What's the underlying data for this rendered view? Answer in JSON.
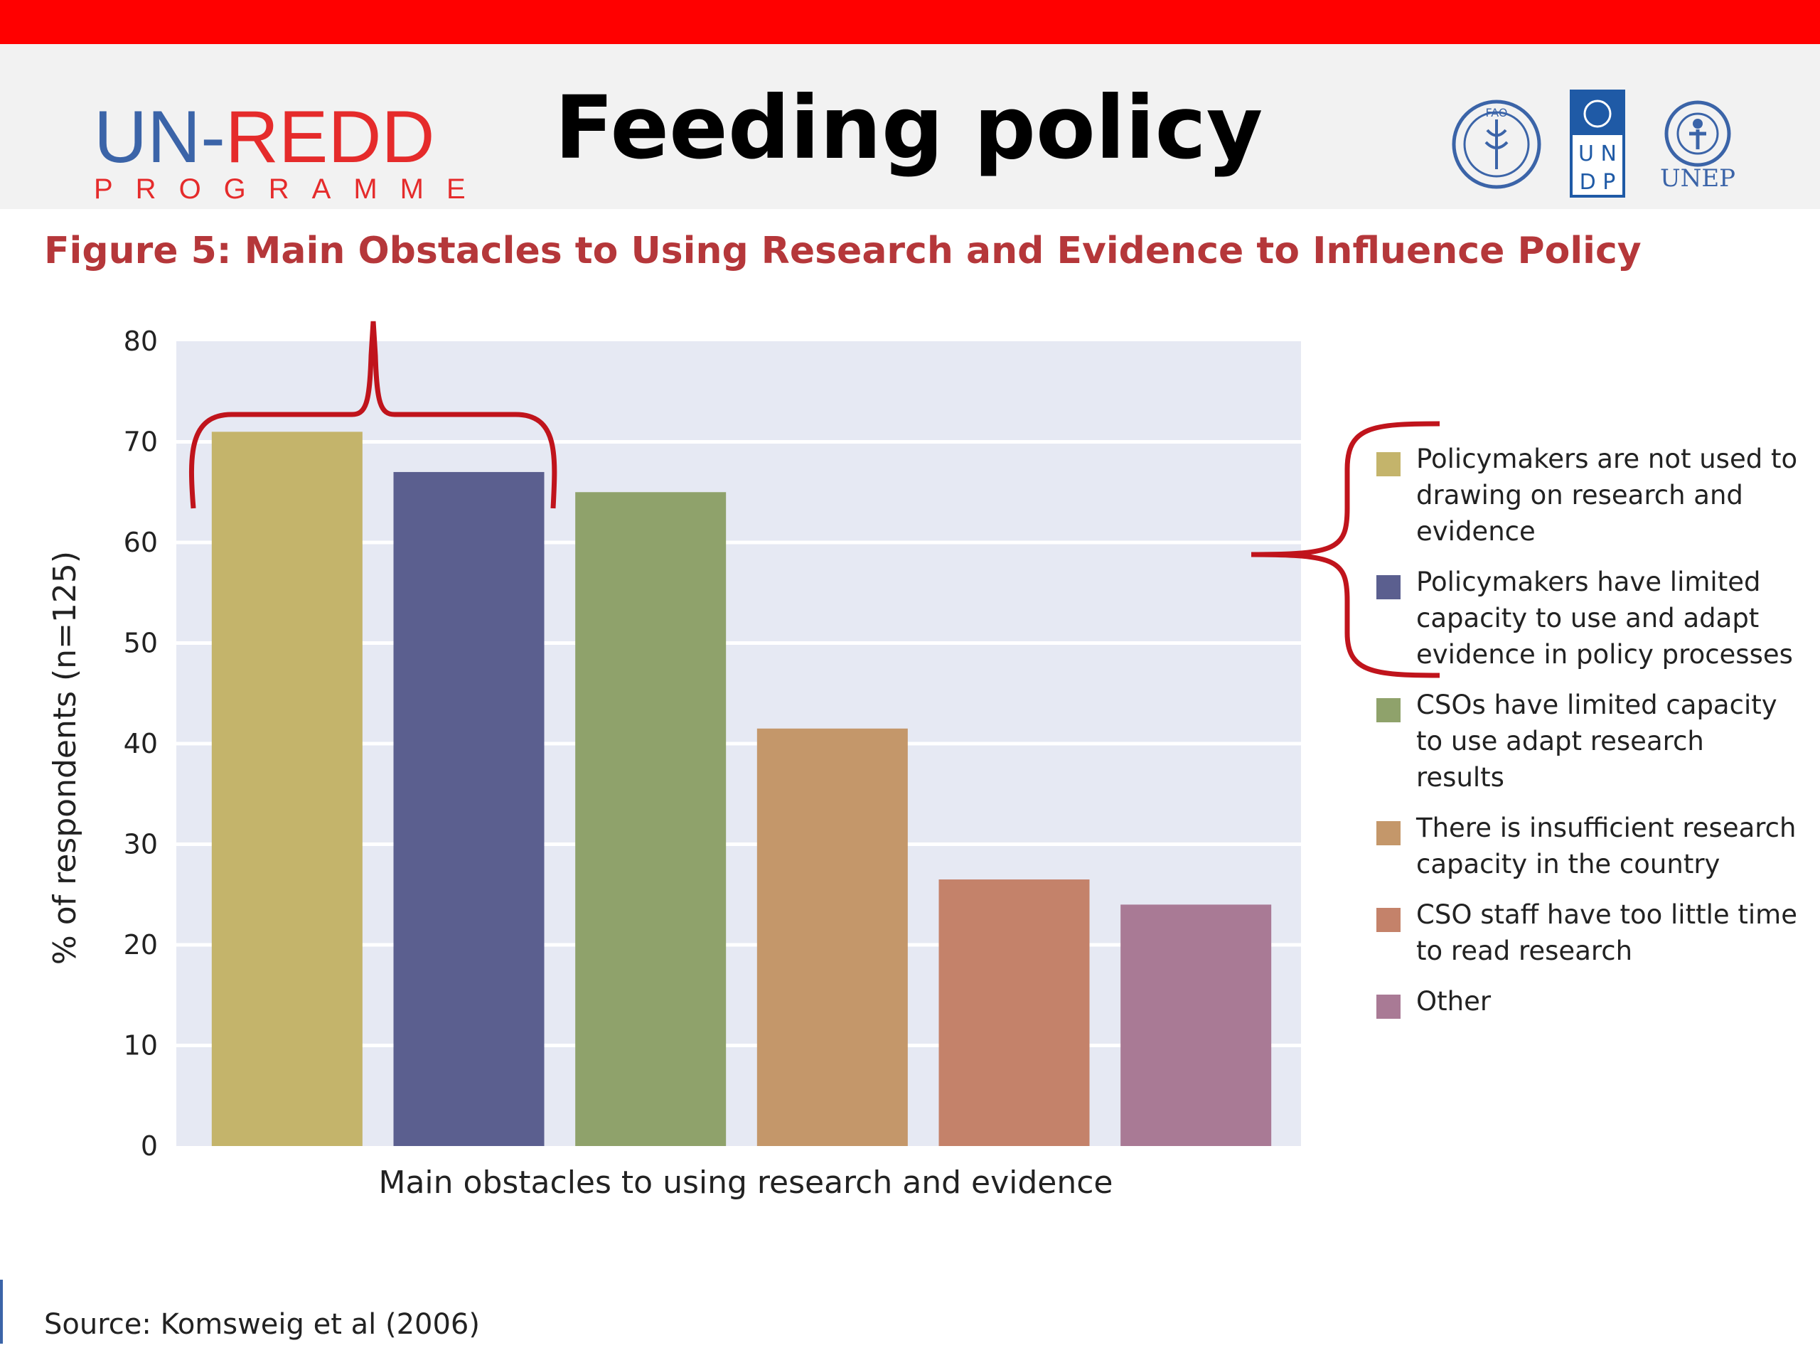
{
  "header": {
    "brand_main_un": "UN-",
    "brand_main_redd": "REDD",
    "brand_sub": "PROGRAMME",
    "title": "Feeding policy",
    "logos": [
      {
        "name": "fao-logo-icon",
        "text": "FAO"
      },
      {
        "name": "undp-logo-icon",
        "text_line1": "U N",
        "text_line2": "D P"
      },
      {
        "name": "unep-logo-icon",
        "text": "UNEP"
      }
    ]
  },
  "colors": {
    "accent_red": "#ff0000",
    "annotation_red": "#c0141c",
    "figure_title": "#b5373a",
    "plot_bg": "#e6e9f3"
  },
  "chart_data": {
    "type": "bar",
    "title": "Figure 5: Main Obstacles to Using Research and Evidence to Influence Policy",
    "xlabel": "Main obstacles to using research and evidence",
    "ylabel": "% of respondents (n=125)",
    "ylim": [
      0,
      80
    ],
    "yticks": [
      "0",
      "10",
      "20",
      "30",
      "40",
      "50",
      "60",
      "70",
      "80"
    ],
    "grid": true,
    "legend_position": "right",
    "categories": [
      "Policymakers are not used to drawing on research and evidence",
      "Policymakers have limited capacity to use and adapt evidence in policy processes",
      "CSOs have limited capacity to use adapt research results",
      "There is insufficient research capacity in the country",
      "CSO staff have too little time to read research",
      "Other"
    ],
    "values": [
      71,
      67,
      65,
      41.5,
      26.5,
      24
    ],
    "bar_colors": [
      "#c4b46b",
      "#5b5f8f",
      "#8fa26b",
      "#c4976a",
      "#c4826a",
      "#a97a95"
    ]
  },
  "source": "Source: Komsweig et al (2006)"
}
